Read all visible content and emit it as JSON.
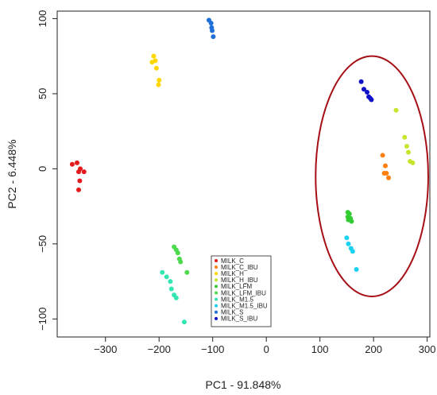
{
  "chart_data": {
    "type": "scatter",
    "xlabel": "PC1 - 91.848%",
    "ylabel": "PC2 - 6.448%",
    "xlim": [
      -390,
      305
    ],
    "ylim": [
      -112,
      105
    ],
    "x_ticks": [
      -300,
      -200,
      -100,
      0,
      100,
      200,
      300
    ],
    "y_ticks": [
      -100,
      -50,
      0,
      50,
      100
    ],
    "grid": false,
    "legend_position": "bottom-center",
    "series": [
      {
        "name": "MILK_C",
        "color": "#e41a1c",
        "points": [
          [
            -362,
            3
          ],
          [
            -353,
            4
          ],
          [
            -347,
            0
          ],
          [
            -340,
            -2
          ],
          [
            -350,
            -2
          ],
          [
            -348,
            -8
          ],
          [
            -350,
            -14
          ]
        ]
      },
      {
        "name": "MILK_C_IBU",
        "color": "#ff7f0e",
        "points": [
          [
            217,
            9
          ],
          [
            222,
            2
          ],
          [
            224,
            -3
          ],
          [
            220,
            -3
          ],
          [
            228,
            -6
          ]
        ]
      },
      {
        "name": "MILK_H",
        "color": "#ffd700",
        "points": [
          [
            -210,
            75
          ],
          [
            -213,
            71
          ],
          [
            -207,
            72
          ],
          [
            -205,
            67
          ],
          [
            -200,
            59
          ],
          [
            -201,
            56
          ]
        ]
      },
      {
        "name": "MILK_H_IBU",
        "color": "#c6e62e",
        "points": [
          [
            242,
            39
          ],
          [
            258,
            21
          ],
          [
            262,
            15
          ],
          [
            265,
            11
          ],
          [
            268,
            5
          ],
          [
            273,
            4
          ]
        ]
      },
      {
        "name": "MILK_LFM",
        "color": "#33cc33",
        "points": [
          [
            152,
            -29
          ],
          [
            152,
            -32
          ],
          [
            155,
            -30
          ],
          [
            153,
            -34
          ],
          [
            157,
            -33
          ],
          [
            159,
            -35
          ]
        ]
      },
      {
        "name": "MILK_LFM_IBU",
        "color": "#4ddb4d",
        "points": [
          [
            -172,
            -52
          ],
          [
            -168,
            -54
          ],
          [
            -165,
            -56
          ],
          [
            -162,
            -60
          ],
          [
            -160,
            -62
          ],
          [
            -148,
            -69
          ]
        ]
      },
      {
        "name": "MILK_M1.5",
        "color": "#33e6b3",
        "points": [
          [
            -194,
            -69
          ],
          [
            -186,
            -72
          ],
          [
            -179,
            -75
          ],
          [
            -177,
            -80
          ],
          [
            -172,
            -84
          ],
          [
            -168,
            -86
          ],
          [
            -153,
            -102
          ]
        ]
      },
      {
        "name": "MILK_M1.5_IBU",
        "color": "#1ad1f0",
        "points": [
          [
            150,
            -46
          ],
          [
            153,
            -50
          ],
          [
            158,
            -53
          ],
          [
            161,
            -55
          ],
          [
            168,
            -67
          ]
        ]
      },
      {
        "name": "MILK_S",
        "color": "#1f6fd8",
        "points": [
          [
            -107,
            99
          ],
          [
            -103,
            97
          ],
          [
            -102,
            94
          ],
          [
            -101,
            92
          ],
          [
            -99,
            88
          ]
        ]
      },
      {
        "name": "MILK_S_IBU",
        "color": "#1010c8",
        "points": [
          [
            177,
            58
          ],
          [
            182,
            53
          ],
          [
            188,
            51
          ],
          [
            191,
            48
          ],
          [
            196,
            46
          ],
          [
            194,
            47
          ]
        ]
      }
    ],
    "annotations": [
      {
        "type": "ellipse",
        "color": "#a50f15",
        "center": [
          197,
          -5
        ],
        "rx": 105,
        "ry": 80
      }
    ]
  }
}
